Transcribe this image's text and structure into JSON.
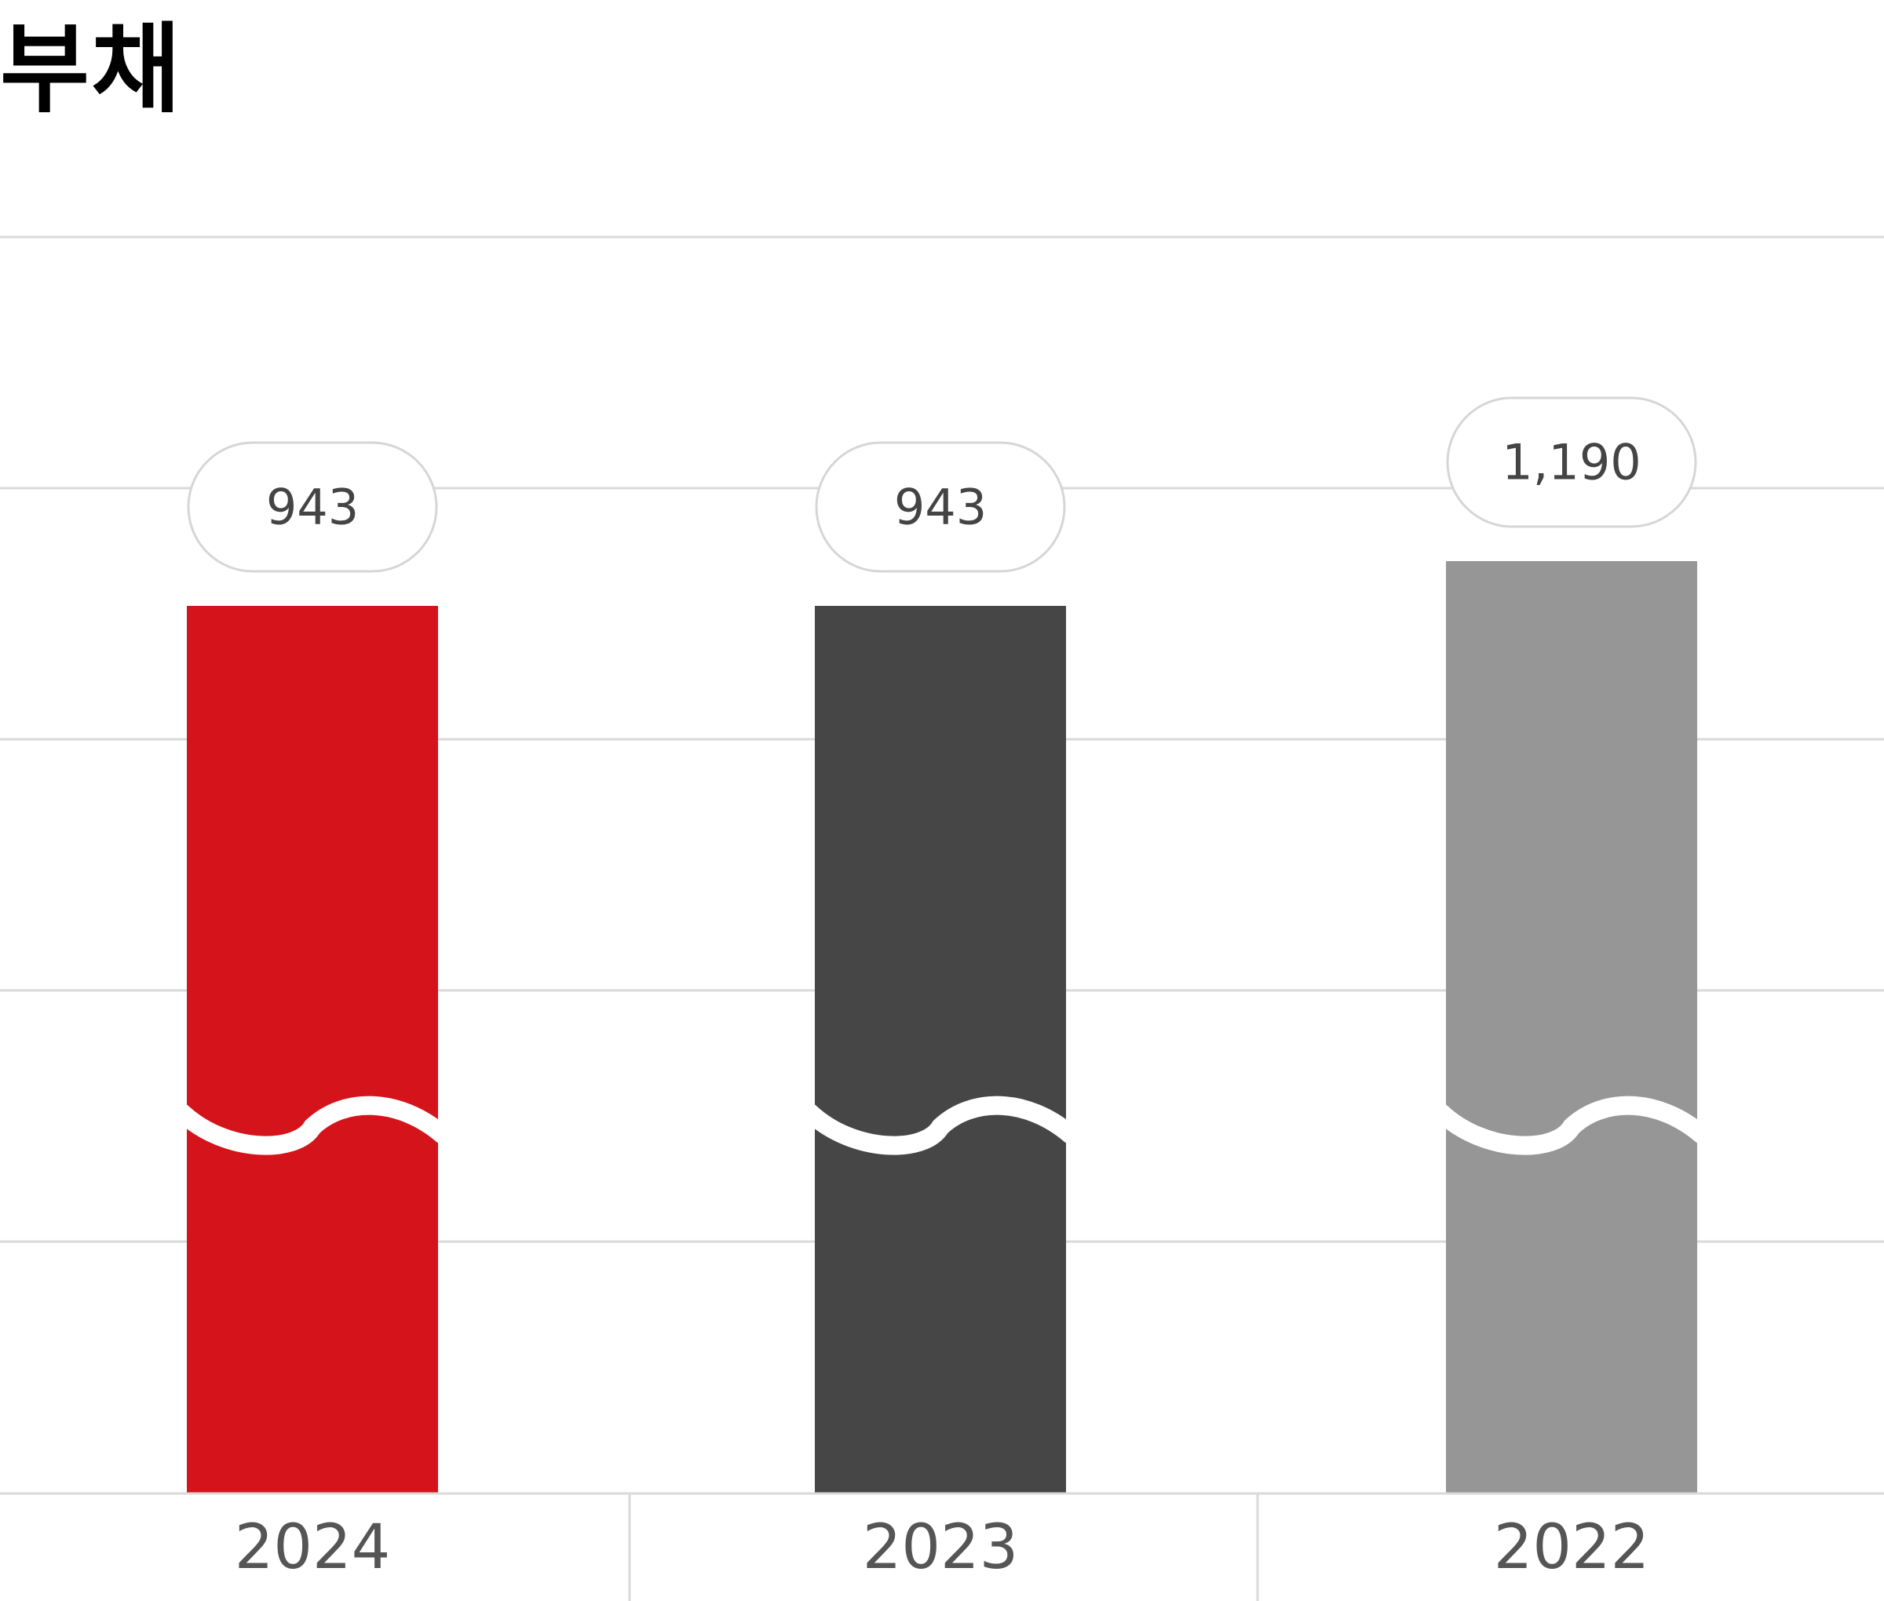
{
  "chart_data": {
    "type": "bar",
    "title": "부채",
    "categories": [
      "2024",
      "2023",
      "2022"
    ],
    "values": [
      943,
      943,
      1190
    ],
    "value_labels": [
      "943",
      "943",
      "1,190"
    ],
    "colors": [
      "#d5131a",
      "#464646",
      "#969696"
    ],
    "axis_break": true,
    "grid": true,
    "xlabel": "",
    "ylabel": ""
  }
}
